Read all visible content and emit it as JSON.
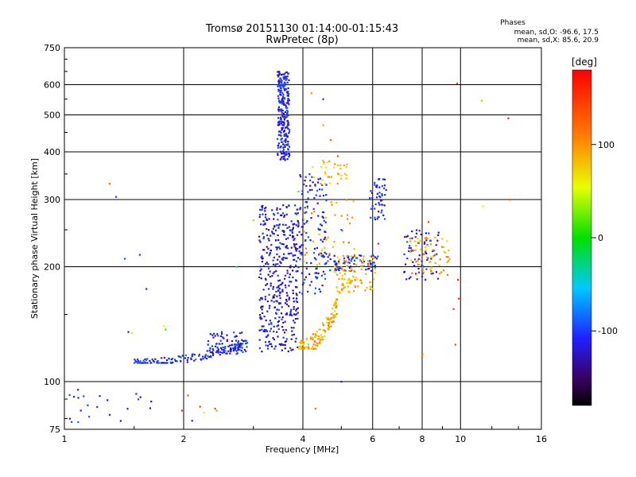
{
  "chart_data": {
    "type": "scatter",
    "title": "Tromsø 20151130 01:14:00-01:15:43",
    "subtitle": "RwPretec (8p)",
    "xlabel": "Frequency [MHz]",
    "ylabel": "Stationary phase Virtual Height [km]",
    "xscale": "log2",
    "yscale": "log",
    "xlim": [
      1,
      16
    ],
    "ylim": [
      75,
      750
    ],
    "x_ticks": [
      1,
      2,
      4,
      6,
      8,
      10,
      16
    ],
    "x_tick_labels": [
      "1",
      "2",
      "4",
      "6",
      "8",
      "10",
      "16"
    ],
    "y_ticks": [
      75,
      100,
      200,
      300,
      400,
      500,
      600,
      750
    ],
    "y_tick_labels": [
      "75",
      "100",
      "200",
      "300",
      "400",
      "500",
      "600",
      "750"
    ],
    "grid": true,
    "phase_info": {
      "heading": "Phases",
      "line_o": "mean, sd,O: -96.6, 17.5",
      "line_x": "mean, sd,X: 85.6, 20.9"
    },
    "colorbar": {
      "label": "[deg]",
      "range": [
        -180,
        180
      ],
      "ticks": [
        100,
        0,
        -100
      ],
      "tick_labels": [
        "100",
        "0",
        "-100"
      ]
    },
    "series": [
      {
        "mode": "O",
        "clusters": [
          {
            "x": [
              1.5,
              2.9
            ],
            "y": [
              112,
              128
            ],
            "phase": -105,
            "n": 160,
            "shape": "trace"
          },
          {
            "x": [
              2.3,
              2.9
            ],
            "y": [
              118,
              135
            ],
            "phase": -110,
            "n": 70
          },
          {
            "x": [
              3.1,
              3.9
            ],
            "y": [
              120,
              290
            ],
            "phase": -118,
            "n": 420
          },
          {
            "x": [
              3.45,
              3.7
            ],
            "y": [
              380,
              650
            ],
            "phase": -112,
            "n": 260
          },
          {
            "x": [
              3.9,
              4.6
            ],
            "y": [
              170,
              350
            ],
            "phase": -112,
            "n": 130
          },
          {
            "x": [
              4.5,
              6.2
            ],
            "y": [
              195,
              215
            ],
            "phase": -105,
            "n": 90
          },
          {
            "x": [
              5.9,
              6.5
            ],
            "y": [
              265,
              340
            ],
            "phase": -112,
            "n": 50
          },
          {
            "x": [
              7.2,
              8.8
            ],
            "y": [
              185,
              250
            ],
            "phase": -112,
            "n": 70
          },
          {
            "x": [
              1.0,
              1.9
            ],
            "y": [
              78,
              96
            ],
            "phase": -105,
            "n": 22
          }
        ]
      },
      {
        "mode": "X",
        "clusters": [
          {
            "x": [
              3.9,
              4.9
            ],
            "y": [
              122,
              165
            ],
            "phase": 90,
            "n": 130,
            "shape": "trace"
          },
          {
            "x": [
              4.8,
              6.1
            ],
            "y": [
              170,
              215
            ],
            "phase": 85,
            "n": 100
          },
          {
            "x": [
              4.2,
              5.2
            ],
            "y": [
              330,
              380
            ],
            "phase": 80,
            "n": 35
          },
          {
            "x": [
              7.4,
              9.4
            ],
            "y": [
              190,
              240
            ],
            "phase": 95,
            "n": 60
          },
          {
            "x": [
              4.0,
              5.5
            ],
            "y": [
              200,
              300
            ],
            "phase": 100,
            "n": 40
          }
        ]
      },
      {
        "mode": "scattered",
        "points": [
          [
            1.3,
            330,
            120
          ],
          [
            1.42,
            210,
            -90
          ],
          [
            1.35,
            305,
            -100
          ],
          [
            1.55,
            215,
            -100
          ],
          [
            1.61,
            175,
            -110
          ],
          [
            1.45,
            135,
            -130
          ],
          [
            1.48,
            134,
            45
          ],
          [
            1.78,
            140,
            55
          ],
          [
            1.8,
            137,
            10
          ],
          [
            1.98,
            84,
            150
          ],
          [
            2.05,
            92,
            130
          ],
          [
            2.1,
            79,
            -110
          ],
          [
            2.2,
            86,
            150
          ],
          [
            2.25,
            83,
            60
          ],
          [
            2.4,
            85,
            140
          ],
          [
            2.42,
            84,
            20
          ],
          [
            2.72,
            200,
            -40
          ],
          [
            3.0,
            265,
            30
          ],
          [
            3.9,
            315,
            20
          ],
          [
            4.2,
            570,
            100
          ],
          [
            4.5,
            470,
            90
          ],
          [
            4.7,
            430,
            130
          ],
          [
            4.9,
            390,
            140
          ],
          [
            5.0,
            250,
            -90
          ],
          [
            6.2,
            230,
            160
          ],
          [
            8.05,
            118,
            50
          ],
          [
            8.0,
            116,
            120
          ],
          [
            8.3,
            262,
            140
          ],
          [
            9.8,
            605,
            140
          ],
          [
            9.9,
            165,
            160
          ],
          [
            9.7,
            125,
            140
          ],
          [
            9.6,
            155,
            150
          ],
          [
            9.85,
            185,
            160
          ],
          [
            11.3,
            545,
            30
          ],
          [
            11.4,
            288,
            50
          ],
          [
            13.2,
            490,
            160
          ],
          [
            13.3,
            300,
            130
          ],
          [
            5.0,
            100,
            -110
          ],
          [
            4.3,
            85,
            120
          ],
          [
            4.5,
            550,
            -100
          ]
        ]
      }
    ]
  }
}
